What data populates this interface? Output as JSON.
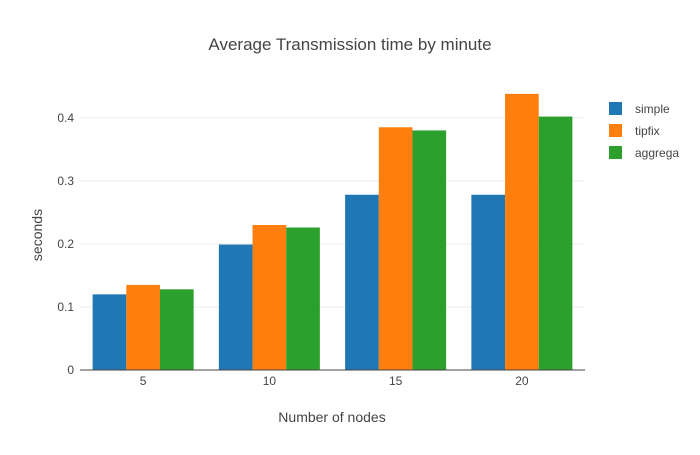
{
  "chart_data": {
    "type": "bar",
    "title": "Average Transmission time by minute",
    "xlabel": "Number of nodes",
    "ylabel": "seconds",
    "categories": [
      "5",
      "10",
      "15",
      "20"
    ],
    "series": [
      {
        "name": "simple",
        "color": "#1f77b4",
        "values": [
          0.12,
          0.199,
          0.278,
          0.278
        ]
      },
      {
        "name": "tipfix",
        "color": "#ff7f0e",
        "values": [
          0.135,
          0.23,
          0.385,
          0.438
        ]
      },
      {
        "name": "aggrega",
        "color": "#2ca02c",
        "values": [
          0.128,
          0.226,
          0.38,
          0.402
        ]
      }
    ],
    "ylim": [
      0,
      0.46
    ],
    "yticks": [
      "0",
      "0.1",
      "0.2",
      "0.3",
      "0.4"
    ],
    "ytick_values": [
      0,
      0.1,
      0.2,
      0.3,
      0.4
    ],
    "grid": true,
    "legend_position": "top-right"
  }
}
